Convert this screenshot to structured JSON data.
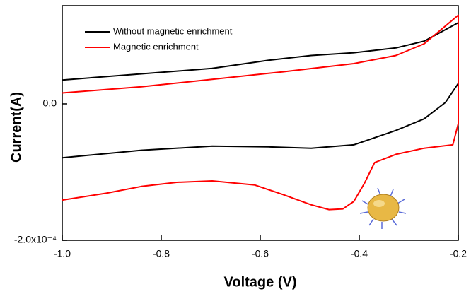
{
  "chart_data": {
    "type": "line",
    "xlabel": "Voltage (V)",
    "ylabel": "Current(A)",
    "xlim": [
      -1.0,
      -0.2
    ],
    "xticks": [
      {
        "value": -1.0,
        "label": "-1.0"
      },
      -0.8,
      -0.6,
      -0.4,
      -0.2
    ],
    "ylim": [
      -0.0002,
      0.000144
    ],
    "yticks": [
      {
        "value": 0,
        "label": "0.0"
      },
      {
        "value": -0.0002,
        "label": "-2.0x10⁻⁴"
      }
    ],
    "legend": "upper left",
    "series": [
      {
        "name": "Without magnetic enrichment",
        "color": "#000000",
        "x": [
          -1,
          -0.84,
          -0.697,
          -0.583,
          -0.497,
          -0.411,
          -0.326,
          -0.269,
          -0.2,
          -0.2,
          -0.226,
          -0.269,
          -0.326,
          -0.411,
          -0.497,
          -0.583,
          -0.697,
          -0.84,
          -1
        ],
        "values": [
          3.5e-05,
          4.4e-05,
          5.2e-05,
          6.4e-05,
          7.1e-05,
          7.5e-05,
          8.2e-05,
          9.2e-05,
          0.000119,
          3e-05,
          2e-06,
          -2.2e-05,
          -3.9e-05,
          -6e-05,
          -6.5e-05,
          -6.3e-05,
          -6.2e-05,
          -6.8e-05,
          -7.9e-05
        ]
      },
      {
        "name": "Magnetic enrichment",
        "color": "#ff0000",
        "x": [
          -1,
          -0.84,
          -0.697,
          -0.554,
          -0.411,
          -0.326,
          -0.269,
          -0.2,
          -0.2,
          -0.211,
          -0.269,
          -0.326,
          -0.369,
          -0.39,
          -0.411,
          -0.433,
          -0.461,
          -0.497,
          -0.554,
          -0.611,
          -0.697,
          -0.769,
          -0.84,
          -0.911,
          -1
        ],
        "values": [
          1.6e-05,
          2.5e-05,
          3.6e-05,
          4.7e-05,
          5.9e-05,
          7.1e-05,
          8.8e-05,
          0.00013,
          -2.9e-05,
          -6e-05,
          -6.5e-05,
          -7.4e-05,
          -8.6e-05,
          -0.000117,
          -0.000143,
          -0.000154,
          -0.000155,
          -0.000148,
          -0.000133,
          -0.000119,
          -0.000113,
          -0.000115,
          -0.000121,
          -0.000131,
          -0.000141
        ]
      }
    ]
  }
}
